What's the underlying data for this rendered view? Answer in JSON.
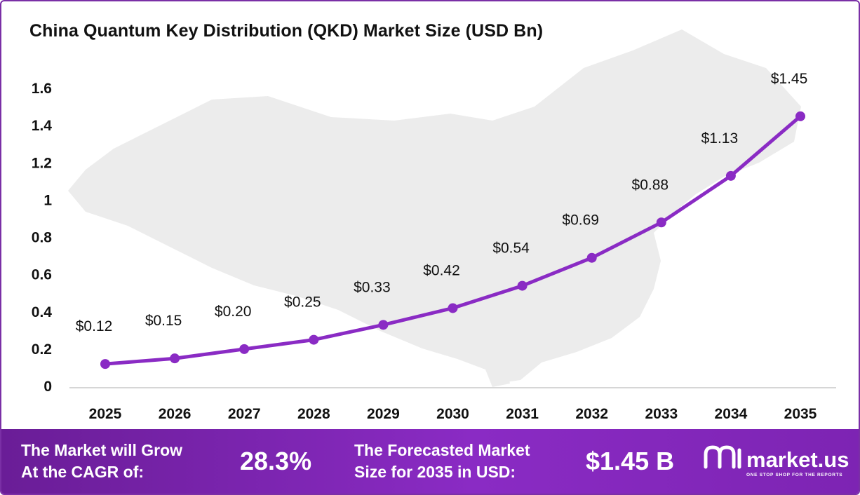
{
  "chart_data": {
    "type": "line",
    "title": "China Quantum Key Distribution (QKD) Market Size (USD Bn)",
    "x": [
      "2025",
      "2026",
      "2027",
      "2028",
      "2029",
      "2030",
      "2031",
      "2032",
      "2033",
      "2034",
      "2035"
    ],
    "values": [
      0.12,
      0.15,
      0.2,
      0.25,
      0.33,
      0.42,
      0.54,
      0.69,
      0.88,
      1.13,
      1.45
    ],
    "data_labels": [
      "$0.12",
      "$0.15",
      "$0.20",
      "$0.25",
      "$0.33",
      "$0.42",
      "$0.54",
      "$0.69",
      "$0.88",
      "$1.13",
      "$1.45"
    ],
    "y_ticks": [
      "0",
      "0.2",
      "0.4",
      "0.6",
      "0.8",
      "1",
      "1.2",
      "1.4",
      "1.6"
    ],
    "ylim": [
      0,
      1.6
    ],
    "xlabel": "",
    "ylabel": "",
    "grid": false,
    "legend": "none",
    "line_color": "#8a2bc4",
    "background": "map of China (light gray silhouette)"
  },
  "banner": {
    "cagr_label_line1": "The Market will Grow",
    "cagr_label_line2": "At the CAGR of:",
    "cagr_value": "28.3%",
    "forecast_label_line1": "The Forecasted Market",
    "forecast_label_line2": "Size for 2035 in USD:",
    "forecast_value": "$1.45 B",
    "brand_name": "market.us",
    "brand_tagline": "ONE STOP SHOP FOR THE REPORTS",
    "background_color": "#7d24b3"
  }
}
